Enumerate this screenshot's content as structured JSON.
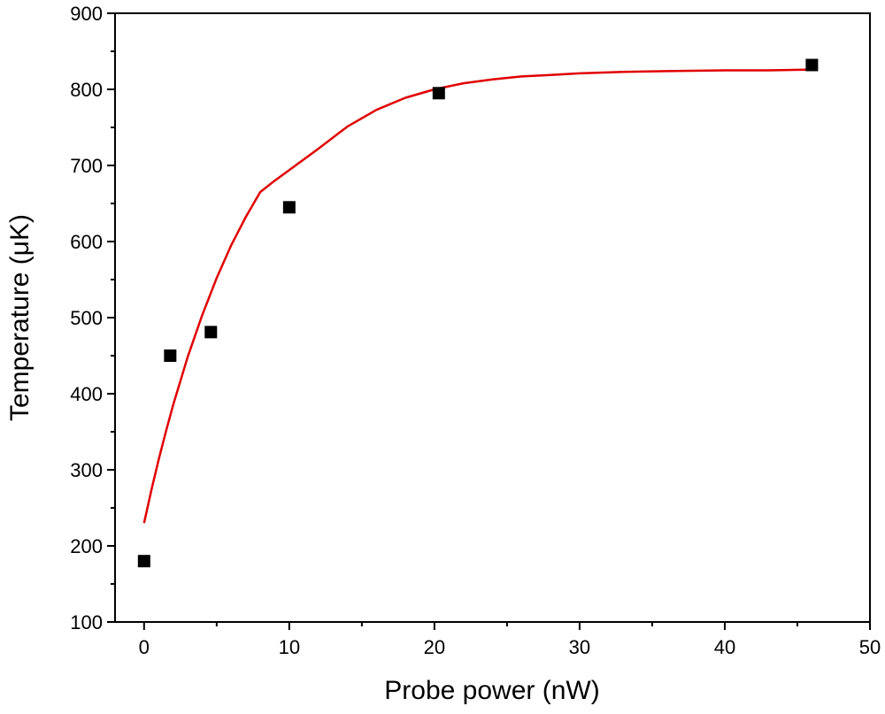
{
  "chart_data": {
    "type": "scatter",
    "xlabel": "Probe power (nW)",
    "ylabel": "Temperature (μK)",
    "xlim": [
      -2,
      50
    ],
    "ylim": [
      100,
      900
    ],
    "xticks": [
      0,
      10,
      20,
      30,
      40,
      50
    ],
    "yticks": [
      100,
      200,
      300,
      400,
      500,
      600,
      700,
      800,
      900
    ],
    "grid": false,
    "series": [
      {
        "kind": "points",
        "marker": "square",
        "color": "#000000",
        "x": [
          0.0,
          1.8,
          4.6,
          10.0,
          20.3,
          46.0
        ],
        "y": [
          180,
          450,
          481,
          645,
          795,
          832
        ]
      },
      {
        "kind": "fit-line",
        "color": "#e00000",
        "x": [
          0.0,
          0.5,
          1,
          1.5,
          2,
          3,
          4,
          5,
          6,
          7,
          8,
          9,
          10,
          12,
          14,
          16,
          18,
          20,
          22,
          24,
          26,
          28,
          30,
          33,
          36,
          40,
          43,
          46
        ],
        "y": [
          230,
          273,
          313,
          350,
          385,
          448,
          503,
          552,
          595,
          632,
          665,
          694,
          680,
          722,
          751,
          773,
          789,
          800,
          808,
          813,
          817,
          819,
          821,
          823,
          824,
          825,
          825,
          826
        ]
      }
    ]
  }
}
